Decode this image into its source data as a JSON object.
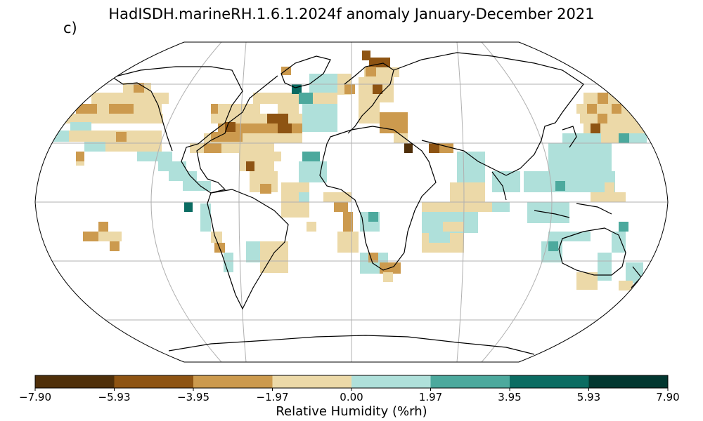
{
  "title": "HadISDH.marineRH.1.6.1.2024f anomaly January-December 2021",
  "panel_label": "c)",
  "colorbar": {
    "label": "Relative Humidity (%rh)",
    "ticks": [
      "−7.90",
      "−5.93",
      "−3.95",
      "−1.97",
      "0.00",
      "1.97",
      "3.95",
      "5.93",
      "7.90"
    ],
    "colors": [
      "#4f2f0a",
      "#8e5413",
      "#cc9a4e",
      "#ecd9a8",
      "#afe0da",
      "#4ca99d",
      "#0b6c62",
      "#023730"
    ]
  },
  "map": {
    "projection": "Robinson",
    "graticule_color": "#b0b0b0",
    "coast_color": "#000000"
  }
}
